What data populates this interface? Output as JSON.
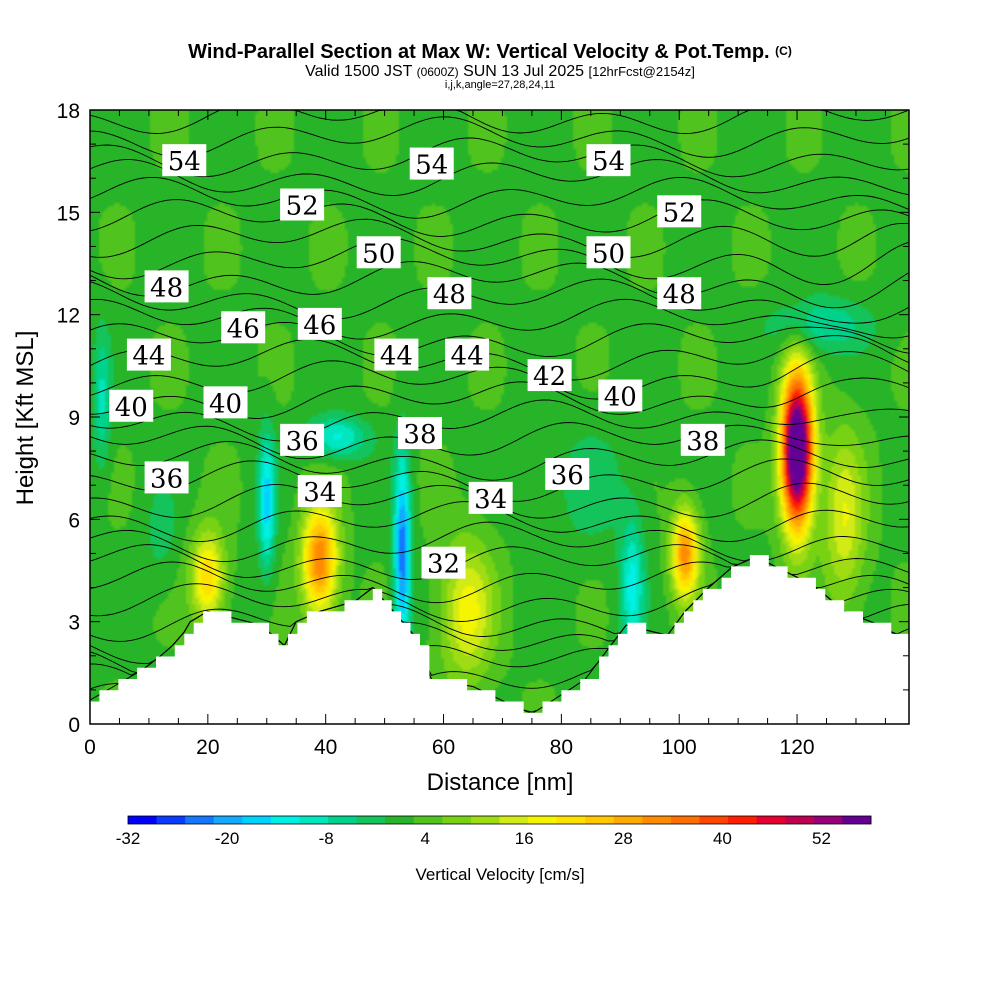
{
  "chart_data": {
    "type": "heatmap",
    "title": "Wind-Parallel Section at Max W: Vertical Velocity & Pot.Temp.",
    "title_mark": "(C)",
    "subtitle_parts": [
      "Valid 1500 JST",
      "(0600Z)",
      "SUN 13 Jul 2025",
      "[12hrFcst@2154z]"
    ],
    "subtitle2": "i,j,k,angle=27,28,24,11",
    "xlabel": "Distance [nm]",
    "ylabel": "Height [Kft MSL]",
    "xlim": [
      0,
      139
    ],
    "ylim": [
      0,
      18
    ],
    "xticks": [
      0,
      20,
      40,
      60,
      80,
      100,
      120
    ],
    "yticks": [
      0,
      3,
      6,
      9,
      12,
      15,
      18
    ],
    "colorbar": {
      "label": "Vertical Velocity [cm/s]",
      "range": [
        -32,
        58
      ],
      "ticks": [
        -32,
        -20,
        -8,
        4,
        16,
        28,
        40,
        52
      ],
      "colors": [
        "#0000ff",
        "#0a3cff",
        "#1478ff",
        "#14aaff",
        "#00d2ff",
        "#00f0e6",
        "#00e6be",
        "#00d28c",
        "#14c35a",
        "#28b428",
        "#50c31e",
        "#78d214",
        "#a0dc14",
        "#d2eb14",
        "#f5f500",
        "#ffe100",
        "#ffc800",
        "#ffaa00",
        "#ff8c00",
        "#ff6e00",
        "#ff4600",
        "#ff1e00",
        "#e60032",
        "#be0050",
        "#960078",
        "#640096"
      ]
    },
    "contour_labels": [
      {
        "text": "54",
        "x": 16,
        "y": 16.5
      },
      {
        "text": "54",
        "x": 58,
        "y": 16.4
      },
      {
        "text": "54",
        "x": 88,
        "y": 16.5
      },
      {
        "text": "52",
        "x": 36,
        "y": 15.2
      },
      {
        "text": "52",
        "x": 100,
        "y": 15.0
      },
      {
        "text": "50",
        "x": 49,
        "y": 13.8
      },
      {
        "text": "50",
        "x": 88,
        "y": 13.8
      },
      {
        "text": "48",
        "x": 13,
        "y": 12.8
      },
      {
        "text": "48",
        "x": 61,
        "y": 12.6
      },
      {
        "text": "48",
        "x": 100,
        "y": 12.6
      },
      {
        "text": "46",
        "x": 26,
        "y": 11.6
      },
      {
        "text": "46",
        "x": 39,
        "y": 11.7
      },
      {
        "text": "44",
        "x": 10,
        "y": 10.8
      },
      {
        "text": "44",
        "x": 52,
        "y": 10.8
      },
      {
        "text": "44",
        "x": 64,
        "y": 10.8
      },
      {
        "text": "42",
        "x": 78,
        "y": 10.2
      },
      {
        "text": "40",
        "x": 7,
        "y": 9.3
      },
      {
        "text": "40",
        "x": 23,
        "y": 9.4
      },
      {
        "text": "40",
        "x": 90,
        "y": 9.6
      },
      {
        "text": "38",
        "x": 56,
        "y": 8.5
      },
      {
        "text": "38",
        "x": 104,
        "y": 8.3
      },
      {
        "text": "36",
        "x": 36,
        "y": 8.3
      },
      {
        "text": "36",
        "x": 81,
        "y": 7.3
      },
      {
        "text": "36",
        "x": 13,
        "y": 7.2
      },
      {
        "text": "34",
        "x": 39,
        "y": 6.8
      },
      {
        "text": "34",
        "x": 68,
        "y": 6.6
      },
      {
        "text": "32",
        "x": 60,
        "y": 4.7
      }
    ],
    "terrain_height": [
      {
        "x": 0,
        "h": 0.7
      },
      {
        "x": 3,
        "h": 1.0
      },
      {
        "x": 6,
        "h": 1.3
      },
      {
        "x": 9,
        "h": 1.6
      },
      {
        "x": 12,
        "h": 2.0
      },
      {
        "x": 14,
        "h": 2.3
      },
      {
        "x": 16,
        "h": 2.7
      },
      {
        "x": 17,
        "h": 3.0
      },
      {
        "x": 20,
        "h": 3.3
      },
      {
        "x": 29,
        "h": 2.9
      },
      {
        "x": 33,
        "h": 2.3
      },
      {
        "x": 35,
        "h": 3.0
      },
      {
        "x": 39,
        "h": 3.3
      },
      {
        "x": 45,
        "h": 3.6
      },
      {
        "x": 48,
        "h": 4.0
      },
      {
        "x": 55,
        "h": 2.6
      },
      {
        "x": 58,
        "h": 1.3
      },
      {
        "x": 65,
        "h": 1.1
      },
      {
        "x": 71,
        "h": 0.6
      },
      {
        "x": 75,
        "h": 0.3
      },
      {
        "x": 84,
        "h": 1.3
      },
      {
        "x": 91,
        "h": 2.9
      },
      {
        "x": 98,
        "h": 2.6
      },
      {
        "x": 101,
        "h": 3.3
      },
      {
        "x": 105,
        "h": 4.0
      },
      {
        "x": 109,
        "h": 4.6
      },
      {
        "x": 113,
        "h": 4.9
      },
      {
        "x": 120,
        "h": 4.3
      },
      {
        "x": 124,
        "h": 3.9
      },
      {
        "x": 128,
        "h": 3.3
      },
      {
        "x": 134,
        "h": 2.9
      },
      {
        "x": 137,
        "h": 2.6
      },
      {
        "x": 139,
        "h": 2.6
      }
    ],
    "w_features": [
      {
        "x": 120,
        "y": 8.0,
        "sx": 2.6,
        "sy": 2.2,
        "w": 70
      },
      {
        "x": 39,
        "y": 4.8,
        "sx": 3.0,
        "sy": 1.6,
        "w": 32
      },
      {
        "x": 101,
        "y": 5.0,
        "sx": 2.3,
        "sy": 1.3,
        "w": 30
      },
      {
        "x": 20,
        "y": 4.3,
        "sx": 2.8,
        "sy": 1.3,
        "w": 22
      },
      {
        "x": 64,
        "y": 3.3,
        "sx": 4.5,
        "sy": 2.0,
        "w": 16
      },
      {
        "x": 128,
        "y": 6.0,
        "sx": 3.5,
        "sy": 2.5,
        "w": 14
      },
      {
        "x": 53,
        "y": 5.0,
        "sx": 1.4,
        "sy": 2.8,
        "w": -26
      },
      {
        "x": 30,
        "y": 6.5,
        "sx": 1.4,
        "sy": 2.0,
        "w": -18
      },
      {
        "x": 42,
        "y": 8.4,
        "sx": 5.0,
        "sy": 0.6,
        "w": -14
      },
      {
        "x": 92,
        "y": 4.0,
        "sx": 2.0,
        "sy": 2.0,
        "w": -14
      },
      {
        "x": 124,
        "y": 11.7,
        "sx": 8.0,
        "sy": 0.8,
        "w": -10
      },
      {
        "x": 2,
        "y": 9.5,
        "sx": 1.5,
        "sy": 2.0,
        "w": -10
      },
      {
        "x": 12,
        "y": 5.5,
        "sx": 3.0,
        "sy": 1.5,
        "w": -4
      },
      {
        "x": 85,
        "y": 7.0,
        "sx": 8.0,
        "sy": 2.0,
        "w": -4
      }
    ]
  }
}
